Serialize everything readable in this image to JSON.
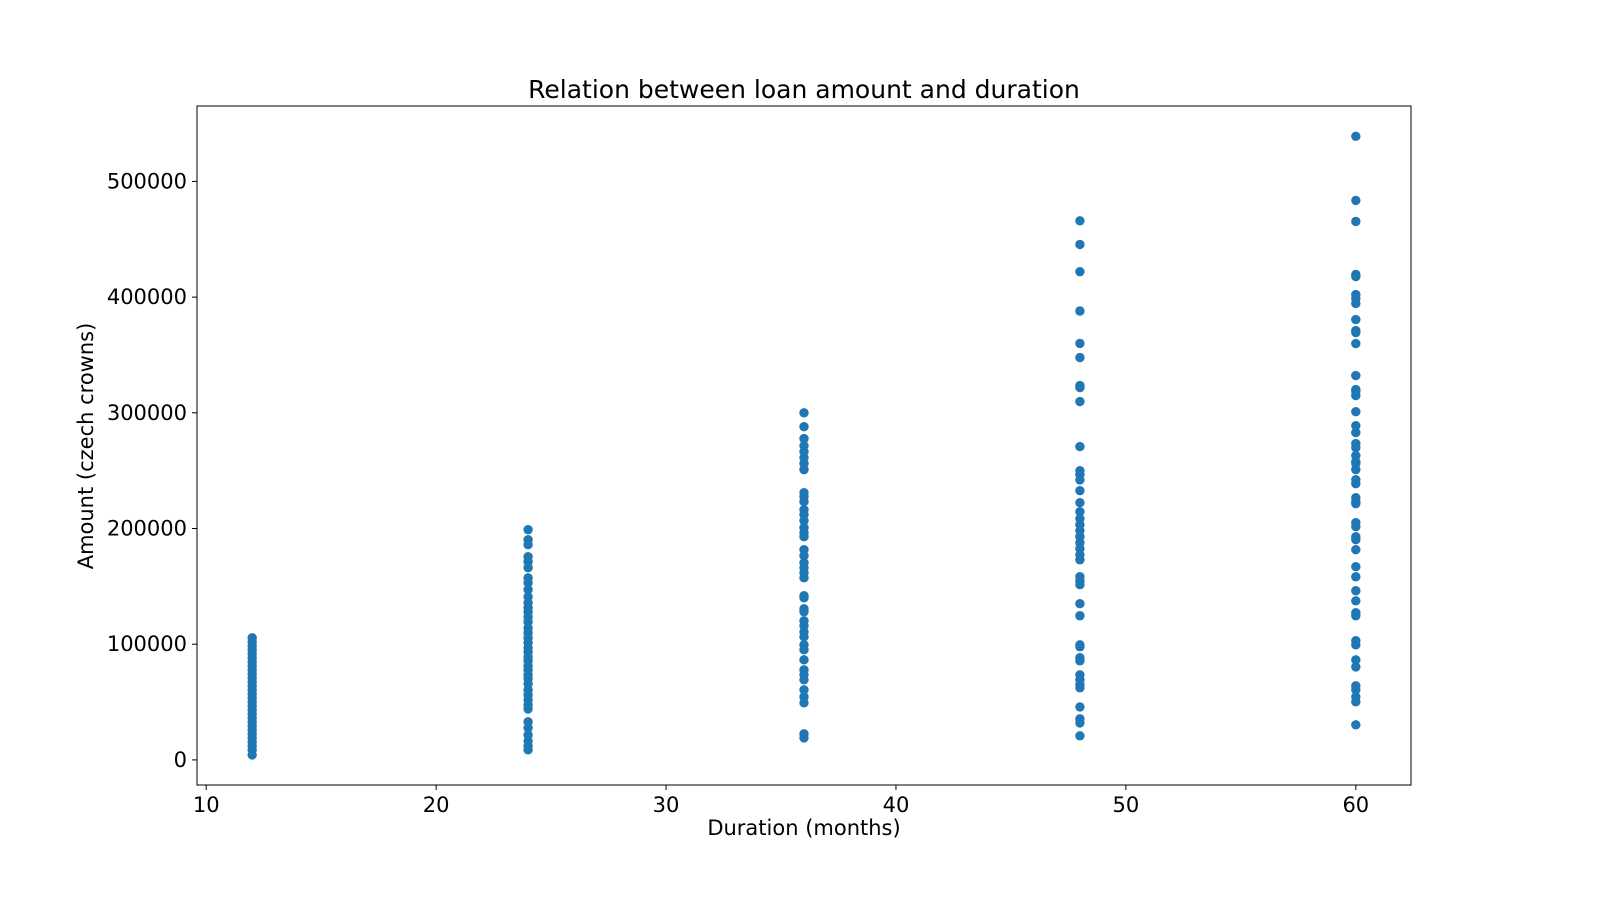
{
  "chart_data": {
    "type": "scatter",
    "title": "Relation between loan amount and duration",
    "x_label": "Duration (months)",
    "y_label": "Amount (czech crowns)",
    "color": "#1f77b4",
    "x": [
      12,
      12,
      12,
      12,
      12,
      12,
      12,
      12,
      12,
      12,
      12,
      12,
      12,
      12,
      12,
      12,
      12,
      12,
      12,
      12,
      12,
      12,
      12,
      12,
      12,
      12,
      12,
      12,
      12,
      12,
      24,
      24,
      24,
      24,
      24,
      24,
      24,
      24,
      24,
      24,
      24,
      24,
      24,
      24,
      24,
      24,
      24,
      24,
      24,
      24,
      24,
      24,
      24,
      24,
      24,
      24,
      24,
      24,
      24,
      24,
      24,
      24,
      24,
      24,
      24,
      24,
      24,
      24,
      24,
      36,
      36,
      36,
      36,
      36,
      36,
      36,
      36,
      36,
      36,
      36,
      36,
      36,
      36,
      36,
      36,
      36,
      36,
      36,
      36,
      36,
      36,
      36,
      36,
      36,
      36,
      36,
      36,
      36,
      36,
      36,
      36,
      36,
      36,
      36,
      36,
      36,
      36,
      36,
      36,
      36,
      36,
      48,
      48,
      48,
      48,
      48,
      48,
      48,
      48,
      48,
      48,
      48,
      48,
      48,
      48,
      48,
      48,
      48,
      48,
      48,
      48,
      48,
      48,
      48,
      48,
      48,
      48,
      48,
      48,
      48,
      48,
      48,
      48,
      48,
      48,
      48,
      48,
      48,
      48,
      48,
      48,
      48,
      60,
      60,
      60,
      60,
      60,
      60,
      60,
      60,
      60,
      60,
      60,
      60,
      60,
      60,
      60,
      60,
      60,
      60,
      60,
      60,
      60,
      60,
      60,
      60,
      60,
      60,
      60,
      60,
      60,
      60,
      60,
      60,
      60,
      60,
      60,
      60,
      60,
      60,
      60,
      60,
      60,
      60,
      60,
      60,
      60,
      60,
      60,
      60,
      60,
      60
    ],
    "values": [
      105500,
      102100,
      98600,
      95200,
      91700,
      88200,
      84800,
      81300,
      77900,
      74400,
      70900,
      67500,
      64000,
      60600,
      57100,
      53600,
      50200,
      46700,
      43300,
      39800,
      36300,
      32900,
      29400,
      26000,
      22500,
      19000,
      15600,
      12100,
      8700,
      4300,
      199000,
      190300,
      186000,
      175600,
      171300,
      166100,
      157400,
      153100,
      147100,
      141000,
      135800,
      131500,
      128000,
      123700,
      119400,
      114200,
      109900,
      105500,
      101200,
      96900,
      93400,
      89100,
      85600,
      81300,
      77900,
      73500,
      70100,
      65700,
      60600,
      56200,
      51900,
      47600,
      44100,
      32900,
      27700,
      21600,
      16400,
      12100,
      8700,
      300000,
      288000,
      277700,
      271600,
      266400,
      261200,
      256100,
      250900,
      231000,
      227500,
      223200,
      216300,
      211900,
      206700,
      200700,
      196400,
      192900,
      181700,
      176500,
      170400,
      166100,
      161800,
      157400,
      141900,
      140100,
      130600,
      128000,
      120200,
      115900,
      110700,
      106400,
      99500,
      95200,
      86500,
      77900,
      73500,
      69200,
      60600,
      54500,
      49300,
      22500,
      19000,
      466000,
      445500,
      422000,
      388000,
      360000,
      347800,
      323500,
      321800,
      309700,
      270800,
      250000,
      246600,
      242000,
      232700,
      222300,
      214500,
      208500,
      203300,
      198100,
      192900,
      187700,
      182500,
      177300,
      173000,
      158300,
      154800,
      151400,
      135000,
      124600,
      99500,
      97800,
      88300,
      85600,
      73500,
      69200,
      64900,
      62300,
      45800,
      35500,
      32000,
      20800,
      539000,
      483600,
      465400,
      419600,
      417800,
      402200,
      398800,
      394500,
      380600,
      371100,
      369400,
      359900,
      332200,
      320100,
      318300,
      314900,
      301000,
      288900,
      282900,
      273400,
      269900,
      263000,
      257800,
      256100,
      250900,
      242200,
      238800,
      226600,
      223200,
      221500,
      205000,
      201600,
      192900,
      190300,
      181700,
      167000,
      158300,
      146200,
      137500,
      127200,
      124600,
      103000,
      99500,
      86500,
      80400,
      64000,
      60600,
      54500,
      50200,
      30300
    ],
    "xlim": [
      9.6,
      62.4
    ],
    "xticks": [
      10,
      20,
      30,
      40,
      50,
      60
    ],
    "ylim": [
      -21700,
      565200
    ],
    "yticks": [
      0,
      100000,
      200000,
      300000,
      400000,
      500000
    ]
  }
}
